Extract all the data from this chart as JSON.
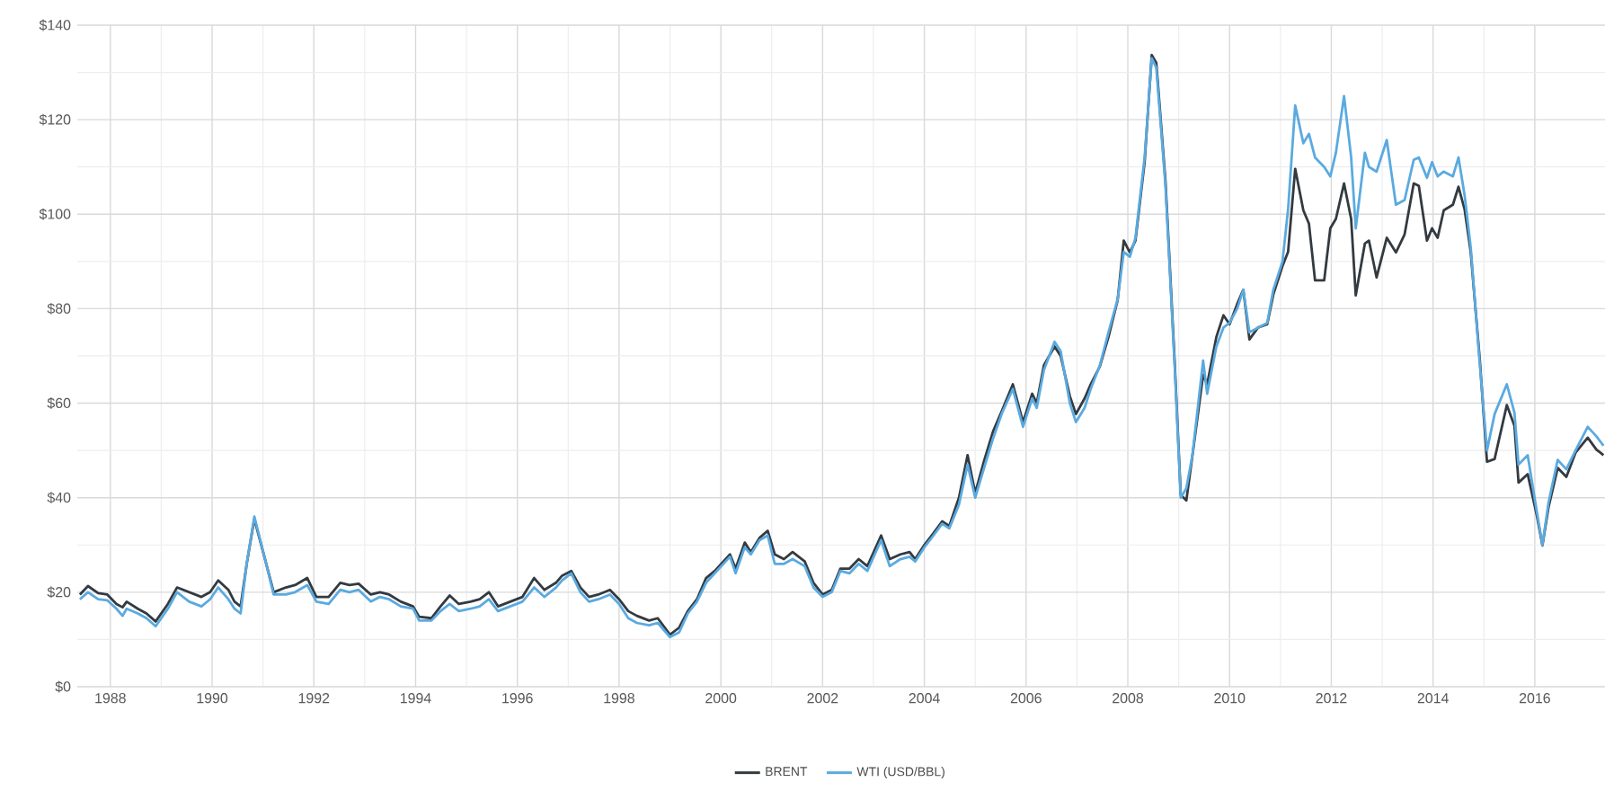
{
  "chart_data": {
    "type": "line",
    "x": [
      1987.4,
      1987.56,
      1987.76,
      1987.94,
      1988.12,
      1988.24,
      1988.32,
      1988.54,
      1988.71,
      1988.89,
      1989.13,
      1989.31,
      1989.55,
      1989.79,
      1989.96,
      1990.12,
      1990.32,
      1990.44,
      1990.56,
      1990.68,
      1990.83,
      1991.04,
      1991.21,
      1991.45,
      1991.63,
      1991.87,
      1992.05,
      1992.29,
      1992.52,
      1992.7,
      1992.88,
      1993.12,
      1993.3,
      1993.48,
      1993.71,
      1993.95,
      1994.07,
      1994.31,
      1994.49,
      1994.67,
      1994.85,
      1995.08,
      1995.26,
      1995.44,
      1995.62,
      1995.86,
      1996.1,
      1996.33,
      1996.53,
      1996.76,
      1996.88,
      1997.06,
      1997.24,
      1997.41,
      1997.59,
      1997.82,
      1998.0,
      1998.18,
      1998.35,
      1998.59,
      1998.76,
      1999.0,
      1999.18,
      1999.35,
      1999.53,
      1999.71,
      1999.88,
      2000.18,
      2000.29,
      2000.47,
      2000.59,
      2000.76,
      2000.92,
      2001.06,
      2001.24,
      2001.41,
      2001.65,
      2001.82,
      2002.0,
      2002.18,
      2002.35,
      2002.53,
      2002.71,
      2002.88,
      2003.15,
      2003.32,
      2003.53,
      2003.71,
      2003.82,
      2004.0,
      2004.18,
      2004.35,
      2004.49,
      2004.68,
      2004.85,
      2005.0,
      2005.18,
      2005.35,
      2005.53,
      2005.74,
      2005.94,
      2006.12,
      2006.21,
      2006.35,
      2006.56,
      2006.68,
      2006.86,
      2006.98,
      2007.15,
      2007.27,
      2007.45,
      2007.62,
      2007.8,
      2007.92,
      2008.04,
      2008.15,
      2008.33,
      2008.47,
      2008.56,
      2008.74,
      2008.92,
      2009.04,
      2009.15,
      2009.27,
      2009.48,
      2009.56,
      2009.74,
      2009.88,
      2010.0,
      2010.15,
      2010.27,
      2010.39,
      2010.56,
      2010.74,
      2010.86,
      2011.04,
      2011.15,
      2011.29,
      2011.45,
      2011.56,
      2011.68,
      2011.86,
      2011.98,
      2012.09,
      2012.25,
      2012.39,
      2012.48,
      2012.66,
      2012.74,
      2012.89,
      2013.09,
      2013.27,
      2013.44,
      2013.62,
      2013.72,
      2013.88,
      2013.98,
      2014.09,
      2014.21,
      2014.39,
      2014.5,
      2014.62,
      2014.74,
      2014.92,
      2015.06,
      2015.21,
      2015.45,
      2015.6,
      2015.68,
      2015.86,
      2016.04,
      2016.15,
      2016.27,
      2016.45,
      2016.62,
      2016.8,
      2017.04,
      2017.21,
      2017.35
    ],
    "series": [
      {
        "name": "BRENT",
        "color": "#333a40",
        "values": [
          19.5,
          21.3,
          19.8,
          19.5,
          17.5,
          16.8,
          18,
          16.5,
          15.5,
          13.8,
          17.5,
          21,
          20,
          19,
          20,
          22.5,
          20.5,
          18,
          17,
          26,
          35.5,
          27,
          20,
          21,
          21.5,
          23,
          19,
          19,
          22,
          21.5,
          21.8,
          19.5,
          20,
          19.5,
          18,
          17,
          14.8,
          14.5,
          17,
          19.3,
          17.5,
          18,
          18.5,
          20,
          17,
          18,
          19,
          23,
          20.5,
          22,
          23.5,
          24.5,
          21,
          19,
          19.5,
          20.5,
          18.5,
          16,
          15,
          14,
          14.5,
          11,
          12.5,
          16,
          18.5,
          23,
          24.5,
          28,
          25,
          30.5,
          28.5,
          31.5,
          33,
          28,
          27,
          28.5,
          26.5,
          22,
          19.5,
          20.5,
          25,
          25,
          27,
          25.5,
          32,
          27,
          28,
          28.5,
          27,
          30,
          32.5,
          35,
          34,
          40,
          49,
          41,
          48,
          54,
          58.5,
          64,
          56,
          62,
          60,
          68,
          72,
          70,
          61.5,
          57.7,
          61,
          64,
          67.8,
          74,
          81.8,
          94.4,
          91.9,
          94.4,
          111,
          133.7,
          132,
          107,
          69,
          40.6,
          39.4,
          48.9,
          66,
          64,
          74,
          78.6,
          76.7,
          81,
          84,
          73.5,
          76,
          76.7,
          83,
          89,
          92,
          109.6,
          100.8,
          98,
          86,
          86,
          97,
          99,
          106.5,
          99,
          82.8,
          93.8,
          94.4,
          86.6,
          95,
          91.9,
          95.7,
          106.5,
          106,
          94.4,
          97,
          95,
          100.8,
          102,
          105.8,
          101,
          92,
          69,
          47.6,
          48.2,
          59.6,
          55.2,
          43.2,
          45,
          36.2,
          29.9,
          38,
          46.3,
          44.4,
          49.5,
          52.7,
          50.2,
          49
        ]
      },
      {
        "name": "WTI (USD/BBL)",
        "color": "#5aaae0",
        "values": [
          18.5,
          20,
          18.5,
          18.3,
          16.5,
          15,
          16.5,
          15.5,
          14.5,
          12.8,
          16.5,
          20,
          18,
          17,
          18.5,
          21,
          18.5,
          16.5,
          15.5,
          26,
          36,
          27,
          19.5,
          19.5,
          20,
          21.5,
          18,
          17.5,
          20.5,
          20,
          20.5,
          18,
          19,
          18.5,
          17,
          16.5,
          14,
          14,
          16,
          17.5,
          16,
          16.5,
          17,
          18.5,
          16,
          17,
          18,
          21,
          19,
          21,
          22.5,
          24,
          20,
          18,
          18.5,
          19.5,
          17.5,
          14.5,
          13.5,
          13,
          13.5,
          10.5,
          11.5,
          15.5,
          18,
          22,
          24,
          27.5,
          24,
          29.5,
          28,
          31,
          32,
          26,
          26,
          27,
          25.5,
          21,
          19,
          20,
          24.5,
          24,
          26,
          24.5,
          31,
          25.5,
          27,
          27.5,
          26.5,
          29.5,
          32,
          34.5,
          33.5,
          38.5,
          47,
          40,
          46.5,
          52.5,
          58,
          63,
          55,
          61,
          59,
          67,
          73,
          71,
          60,
          56,
          59,
          63,
          68,
          75,
          82,
          92,
          91,
          95,
          112,
          133,
          131,
          106,
          68,
          40,
          42,
          49,
          69,
          62,
          72,
          76,
          77,
          80,
          84,
          75,
          76,
          77,
          84,
          90,
          101,
          123,
          115,
          117,
          112,
          110,
          108,
          113,
          125,
          112,
          97,
          113,
          110,
          109,
          115.7,
          102,
          103,
          111.5,
          112,
          107.7,
          111,
          108,
          109,
          108,
          112,
          104,
          93,
          68,
          50,
          57.7,
          64,
          58,
          47,
          49,
          37,
          30,
          39,
          48,
          46,
          50,
          55,
          53,
          51
        ]
      }
    ],
    "xlim": [
      1987.35,
      2017.38
    ],
    "xticks": [
      1988,
      1990,
      1992,
      1994,
      1996,
      1998,
      2000,
      2002,
      2004,
      2006,
      2008,
      2010,
      2012,
      2014,
      2016
    ],
    "ylim": [
      0,
      140
    ],
    "yticks": [
      {
        "value": 0,
        "label": "$0"
      },
      {
        "value": 20,
        "label": "$20"
      },
      {
        "value": 40,
        "label": "$40"
      },
      {
        "value": 60,
        "label": "$60"
      },
      {
        "value": 80,
        "label": "$80"
      },
      {
        "value": 100,
        "label": "$100"
      },
      {
        "value": 120,
        "label": "$120"
      },
      {
        "value": 140,
        "label": "$140"
      }
    ],
    "grid": true,
    "legend": "bottom",
    "marker": "none",
    "line_style": "solid"
  }
}
